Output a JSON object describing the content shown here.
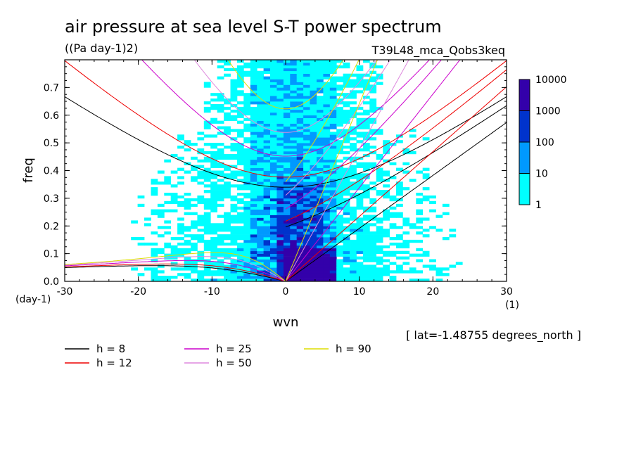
{
  "chart_data": {
    "type": "heatmap",
    "title": "air pressure at sea level S-T power spectrum",
    "subtitle": "((Pa day-1)2)",
    "run_label": "T39L48_mca_Qobs3keq",
    "xlabel": "wvn",
    "ylabel": "freq",
    "x_unit": "(1)",
    "y_unit": "(day-1)",
    "xlim": [
      -30,
      30
    ],
    "ylim": [
      0,
      0.8
    ],
    "x_ticks": [
      "-30",
      "-20",
      "-10",
      "0",
      "10",
      "20",
      "30"
    ],
    "y_ticks": [
      "0.0",
      "0.1",
      "0.2",
      "0.3",
      "0.4",
      "0.5",
      "0.6",
      "0.7"
    ],
    "colorbar": {
      "labels": [
        "1",
        "10",
        "100",
        "1000",
        "10000"
      ],
      "colors": [
        "#00ffff",
        "#0099ff",
        "#0033cc",
        "#3300aa"
      ],
      "levels": [
        1,
        10,
        100,
        1000,
        10000
      ]
    },
    "dispersion_curves": [
      {
        "name": "h = 8",
        "h": 8,
        "color": "#000000"
      },
      {
        "name": "h = 12",
        "h": 12,
        "color": "#ee0000"
      },
      {
        "name": "h = 25",
        "h": 25,
        "color": "#cc00cc"
      },
      {
        "name": "h = 50",
        "h": 50,
        "color": "#dd88dd"
      },
      {
        "name": "h = 90",
        "h": 90,
        "color": "#dddd00"
      }
    ],
    "annotation": "[ lat=-1.48755 degrees_north ]",
    "grid": false
  }
}
